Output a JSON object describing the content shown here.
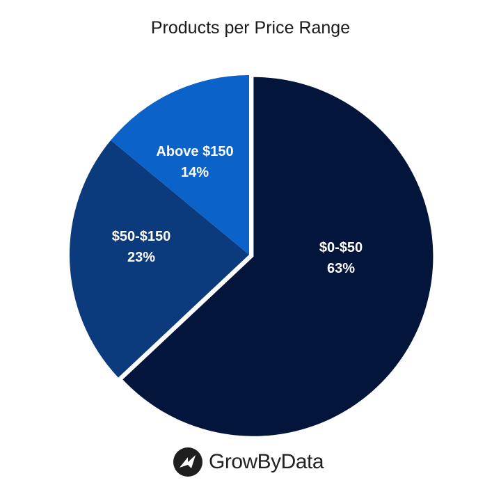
{
  "chart_data": {
    "type": "pie",
    "title": "Products per Price Range",
    "slices": [
      {
        "label": "$0-$50",
        "value": 63,
        "percent_label": "63%",
        "color": "#03153a",
        "explode": true
      },
      {
        "label": "$50-$150",
        "value": 23,
        "percent_label": "23%",
        "color": "#0b3a7d",
        "explode": false
      },
      {
        "label": "Above $150",
        "value": 14,
        "percent_label": "14%",
        "color": "#0b62c9",
        "explode": false
      }
    ]
  },
  "brand": {
    "name": "GrowByData",
    "logo_icon": "growbydata-logo-icon"
  }
}
